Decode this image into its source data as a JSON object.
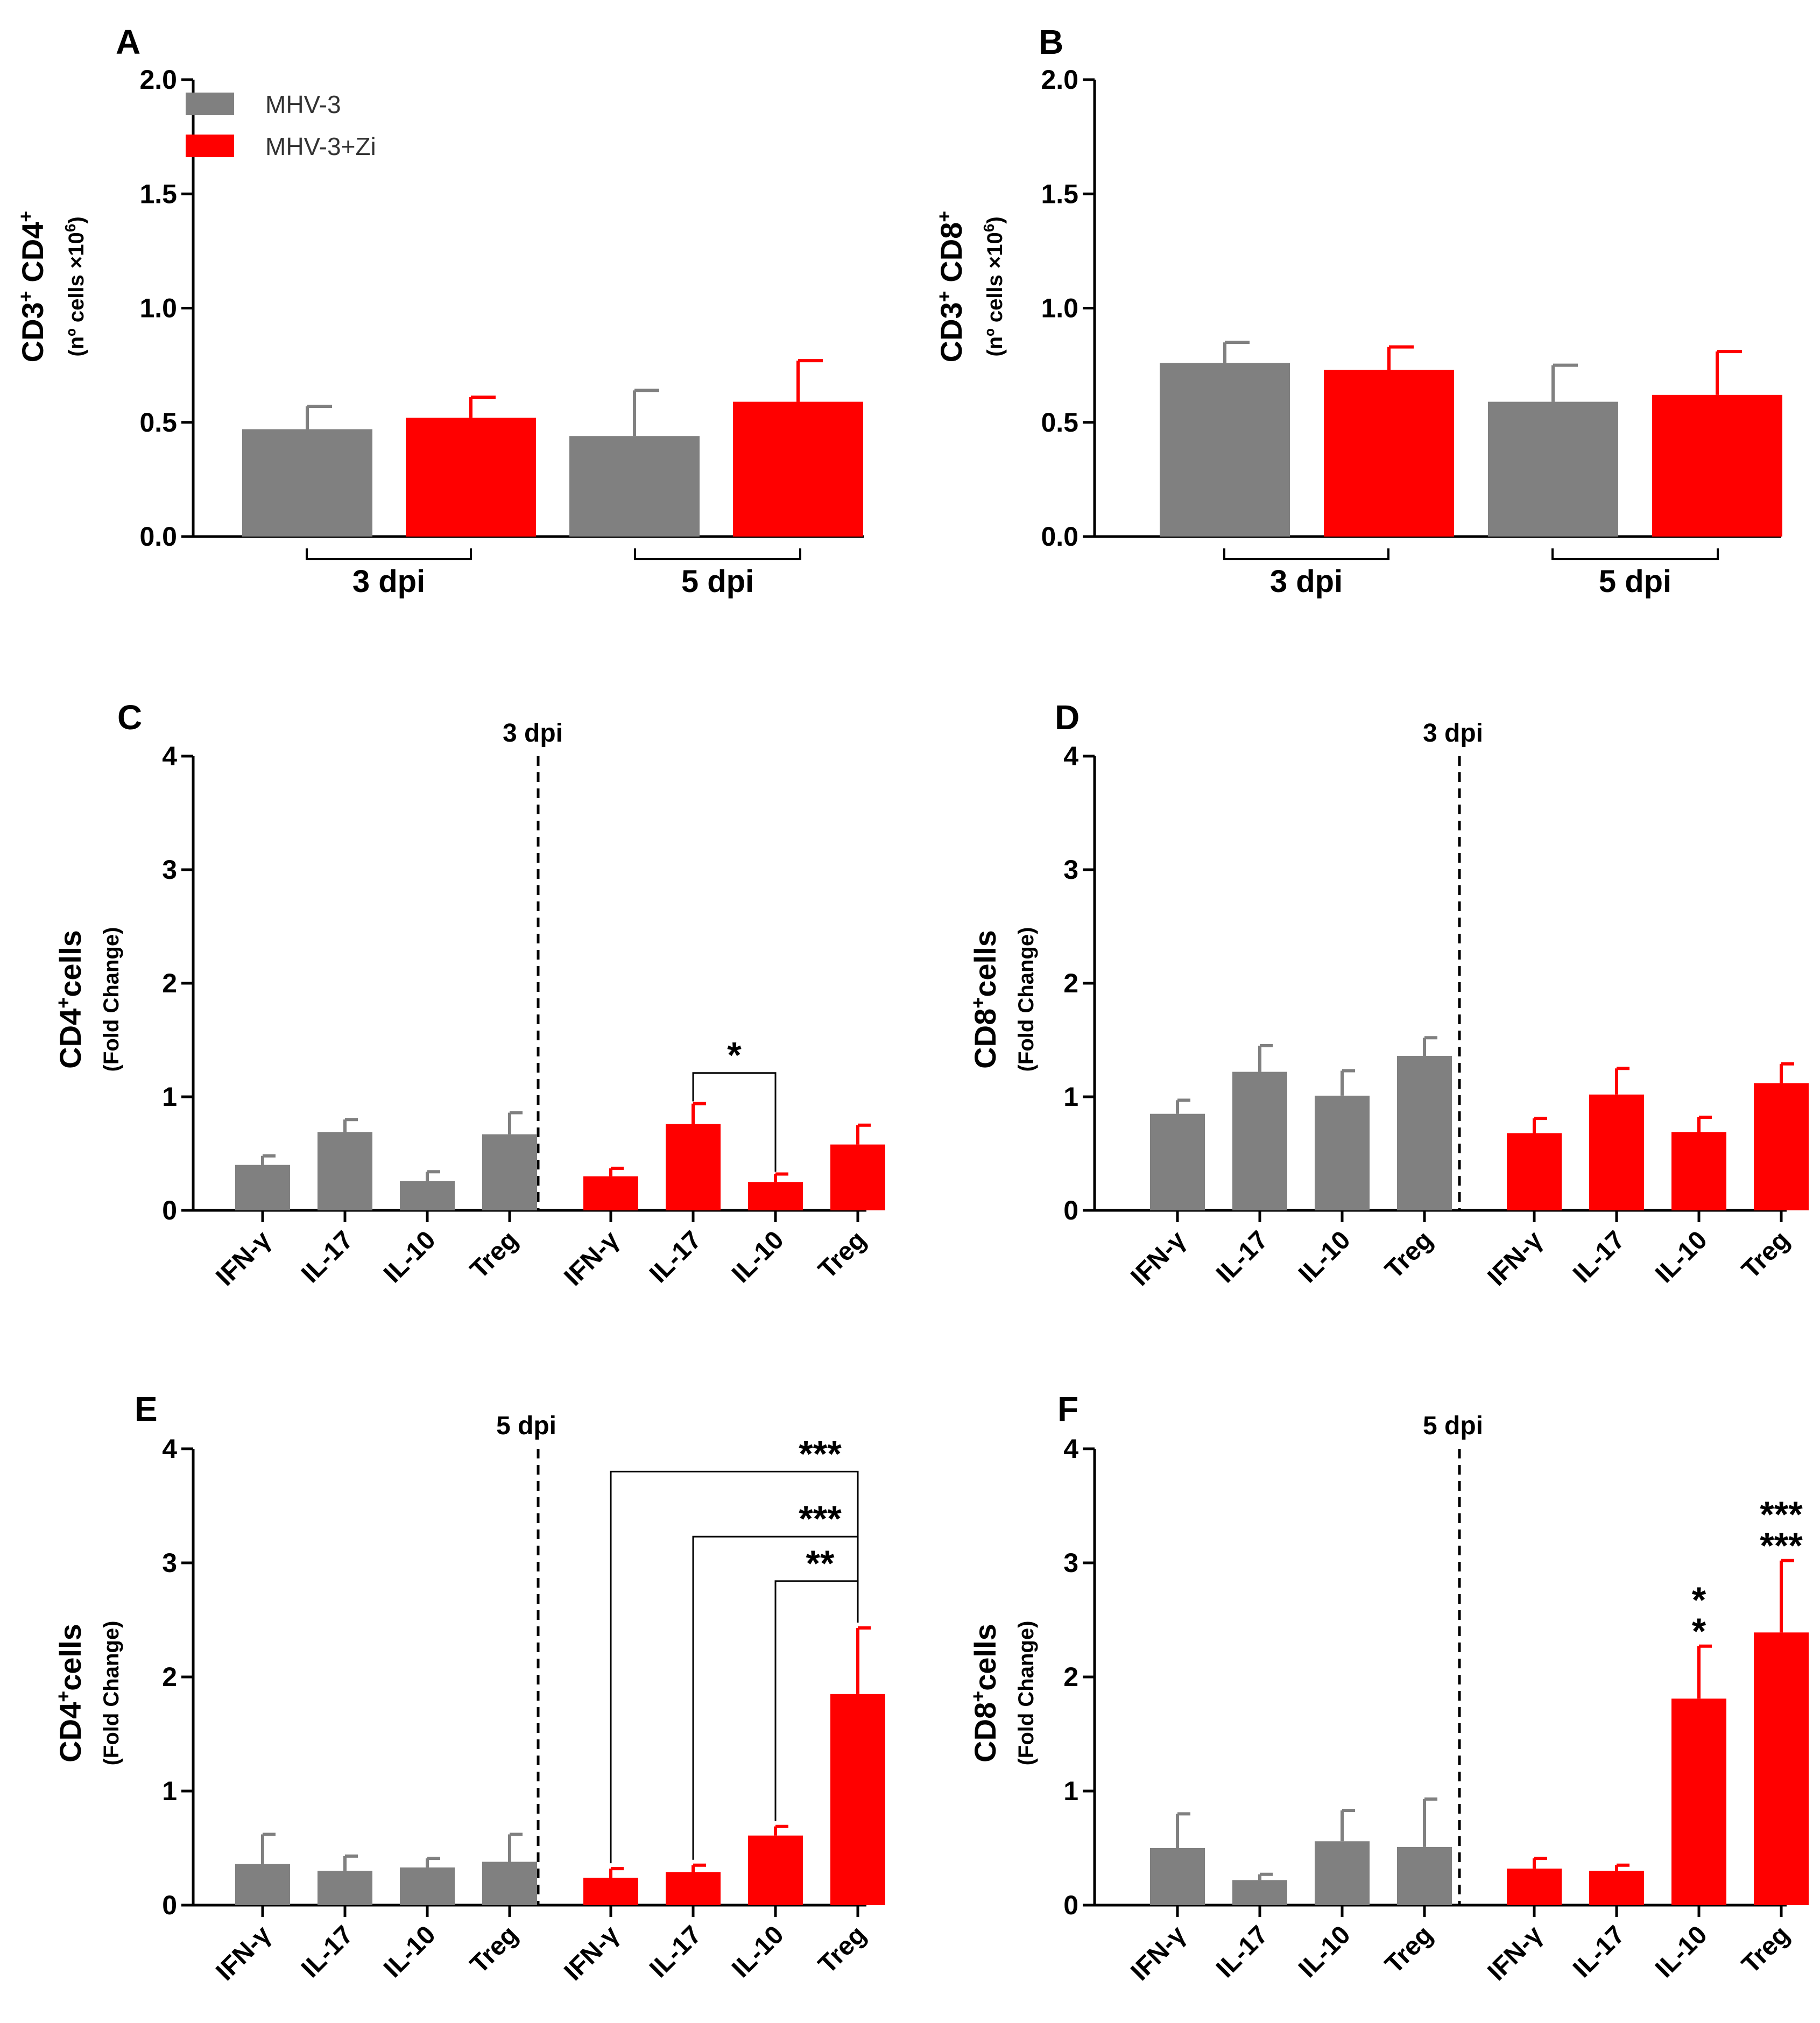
{
  "colors": {
    "MHV-3": "#808080",
    "MHV-3+Zi": "#ff0000"
  },
  "legend": [
    {
      "name": "MHV-3",
      "color": "#808080"
    },
    {
      "name": "MHV-3+Zi",
      "color": "#ff0000"
    }
  ],
  "chart_data": [
    {
      "panel": "A",
      "type": "bar",
      "ylabel_main": "CD3+ CD4+",
      "ylabel_sub": "(nº cells ×10^6)",
      "ylim": [
        0,
        2.0
      ],
      "yticks": [
        "0.0",
        "0.5",
        "1.0",
        "1.5",
        "2.0"
      ],
      "categories": [
        "3 dpi",
        "5 dpi"
      ],
      "series": [
        {
          "name": "MHV-3",
          "values": [
            0.47,
            0.44
          ],
          "errors": [
            0.1,
            0.2
          ]
        },
        {
          "name": "MHV-3+Zi",
          "values": [
            0.52,
            0.59
          ],
          "errors": [
            0.09,
            0.18
          ]
        }
      ]
    },
    {
      "panel": "B",
      "type": "bar",
      "ylabel_main": "CD3+ CD8+",
      "ylabel_sub": "(nº cells ×10^6)",
      "ylim": [
        0,
        2.0
      ],
      "yticks": [
        "0.0",
        "0.5",
        "1.0",
        "1.5",
        "2.0"
      ],
      "categories": [
        "3 dpi",
        "5 dpi"
      ],
      "series": [
        {
          "name": "MHV-3",
          "values": [
            0.76,
            0.59
          ],
          "errors": [
            0.09,
            0.16
          ]
        },
        {
          "name": "MHV-3+Zi",
          "values": [
            0.73,
            0.62
          ],
          "errors": [
            0.1,
            0.19
          ]
        }
      ]
    },
    {
      "panel": "C",
      "type": "bar",
      "annotation": "3 dpi",
      "ylabel_main": "CD4+cells",
      "ylabel_sub": "(Fold Change)",
      "ylim": [
        0,
        4
      ],
      "yticks": [
        "0",
        "1",
        "2",
        "3",
        "4"
      ],
      "categories": [
        "IFN-γ",
        "IL-17",
        "IL-10",
        "Treg",
        "IFN-γ",
        "IL-17",
        "IL-10",
        "Treg"
      ],
      "groups": [
        "MHV-3",
        "MHV-3",
        "MHV-3",
        "MHV-3",
        "MHV-3+Zi",
        "MHV-3+Zi",
        "MHV-3+Zi",
        "MHV-3+Zi"
      ],
      "values": [
        0.4,
        0.69,
        0.26,
        0.67,
        0.3,
        0.76,
        0.25,
        0.58
      ],
      "errors": [
        0.08,
        0.11,
        0.08,
        0.19,
        0.07,
        0.18,
        0.07,
        0.17
      ],
      "brackets": [
        {
          "from": 5,
          "to": 6,
          "label": "*"
        }
      ],
      "stars": []
    },
    {
      "panel": "D",
      "type": "bar",
      "annotation": "3 dpi",
      "ylabel_main": "CD8+cells",
      "ylabel_sub": "(Fold Change)",
      "ylim": [
        0,
        4
      ],
      "yticks": [
        "0",
        "1",
        "2",
        "3",
        "4"
      ],
      "categories": [
        "IFN-γ",
        "IL-17",
        "IL-10",
        "Treg",
        "IFN-γ",
        "IL-17",
        "IL-10",
        "Treg"
      ],
      "groups": [
        "MHV-3",
        "MHV-3",
        "MHV-3",
        "MHV-3",
        "MHV-3+Zi",
        "MHV-3+Zi",
        "MHV-3+Zi",
        "MHV-3+Zi"
      ],
      "values": [
        0.85,
        1.22,
        1.01,
        1.36,
        0.68,
        1.02,
        0.69,
        1.12
      ],
      "errors": [
        0.12,
        0.23,
        0.22,
        0.16,
        0.13,
        0.23,
        0.13,
        0.17
      ],
      "brackets": [],
      "stars": []
    },
    {
      "panel": "E",
      "type": "bar",
      "annotation": "5 dpi",
      "ylabel_main": "CD4+cells",
      "ylabel_sub": "(Fold Change)",
      "ylim": [
        0,
        4
      ],
      "yticks": [
        "0",
        "1",
        "2",
        "3",
        "4"
      ],
      "categories": [
        "IFN-γ",
        "IL-17",
        "IL-10",
        "Treg",
        "IFN-γ",
        "IL-17",
        "IL-10",
        "Treg"
      ],
      "groups": [
        "MHV-3",
        "MHV-3",
        "MHV-3",
        "MHV-3",
        "MHV-3+Zi",
        "MHV-3+Zi",
        "MHV-3+Zi",
        "MHV-3+Zi"
      ],
      "values": [
        0.36,
        0.3,
        0.33,
        0.38,
        0.24,
        0.29,
        0.61,
        1.85
      ],
      "errors": [
        0.26,
        0.13,
        0.08,
        0.24,
        0.08,
        0.06,
        0.08,
        0.58
      ],
      "brackets": [
        {
          "from": 4,
          "to": 7,
          "label": "***",
          "level": 3.8
        },
        {
          "from": 5,
          "to": 7,
          "label": "***",
          "level": 3.23
        },
        {
          "from": 6,
          "to": 7,
          "label": "**",
          "level": 2.84
        }
      ],
      "stars": []
    },
    {
      "panel": "F",
      "type": "bar",
      "annotation": "5 dpi",
      "ylabel_main": "CD8+cells",
      "ylabel_sub": "(Fold Change)",
      "ylim": [
        0,
        4
      ],
      "yticks": [
        "0",
        "1",
        "2",
        "3",
        "4"
      ],
      "categories": [
        "IFN-γ",
        "IL-17",
        "IL-10",
        "Treg",
        "IFN-γ",
        "IL-17",
        "IL-10",
        "Treg"
      ],
      "groups": [
        "MHV-3",
        "MHV-3",
        "MHV-3",
        "MHV-3",
        "MHV-3+Zi",
        "MHV-3+Zi",
        "MHV-3+Zi",
        "MHV-3+Zi"
      ],
      "values": [
        0.5,
        0.22,
        0.56,
        0.51,
        0.32,
        0.3,
        1.81,
        2.39
      ],
      "errors": [
        0.3,
        0.05,
        0.27,
        0.42,
        0.09,
        0.05,
        0.46,
        0.63
      ],
      "brackets": [],
      "stars": [
        {
          "bar": 6,
          "lines": [
            "*",
            "*"
          ]
        },
        {
          "bar": 7,
          "lines": [
            "***",
            "***"
          ]
        }
      ]
    }
  ]
}
